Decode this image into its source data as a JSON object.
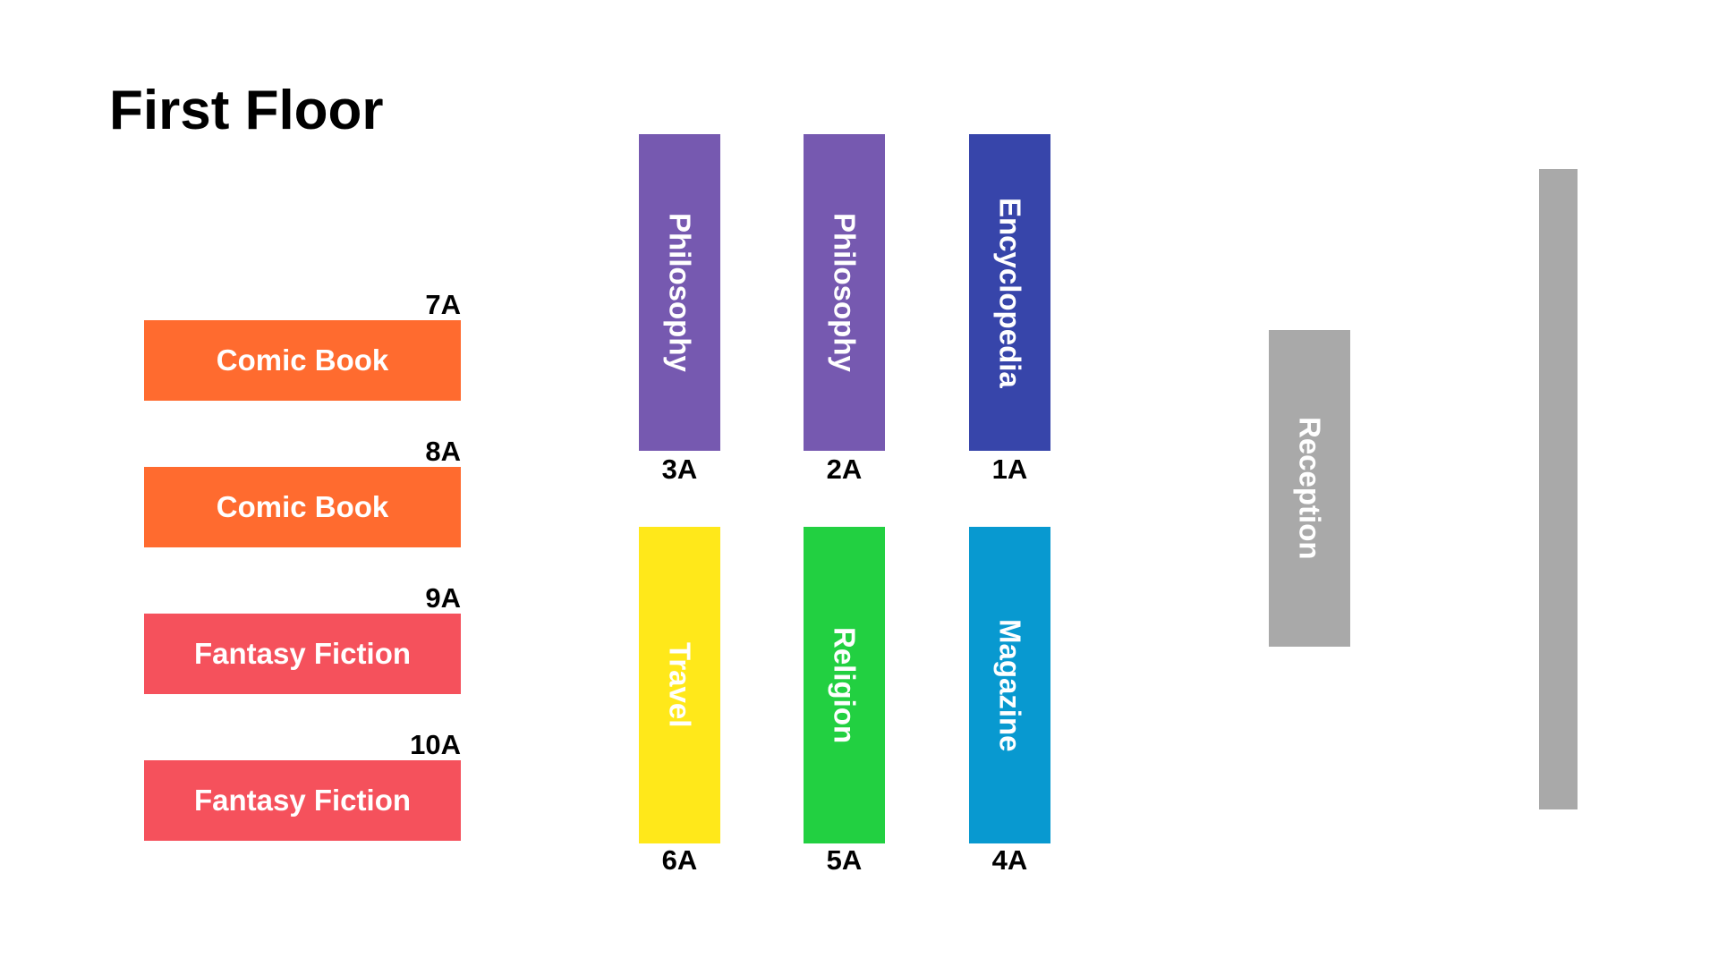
{
  "title": "First Floor",
  "colors": {
    "comic": "#FF6B2F",
    "fantasy": "#F5515C",
    "philosophy": "#7659B0",
    "encyclopedia": "#3745AA",
    "travel": "#FFE81A",
    "religion": "#22D041",
    "magazine": "#0899D0",
    "reception": "#A9A9A9",
    "wall": "#A9A9A9"
  },
  "left_shelves": [
    {
      "code": "7A",
      "label": "Comic Book"
    },
    {
      "code": "8A",
      "label": "Comic Book"
    },
    {
      "code": "9A",
      "label": "Fantasy Fiction"
    },
    {
      "code": "10A",
      "label": "Fantasy Fiction"
    }
  ],
  "top_row": [
    {
      "code": "3A",
      "label": "Philosophy"
    },
    {
      "code": "2A",
      "label": "Philosophy"
    },
    {
      "code": "1A",
      "label": "Encyclopedia"
    }
  ],
  "bottom_row": [
    {
      "code": "6A",
      "label": "Travel"
    },
    {
      "code": "5A",
      "label": "Religion"
    },
    {
      "code": "4A",
      "label": "Magazine"
    }
  ],
  "reception": {
    "label": "Reception"
  }
}
